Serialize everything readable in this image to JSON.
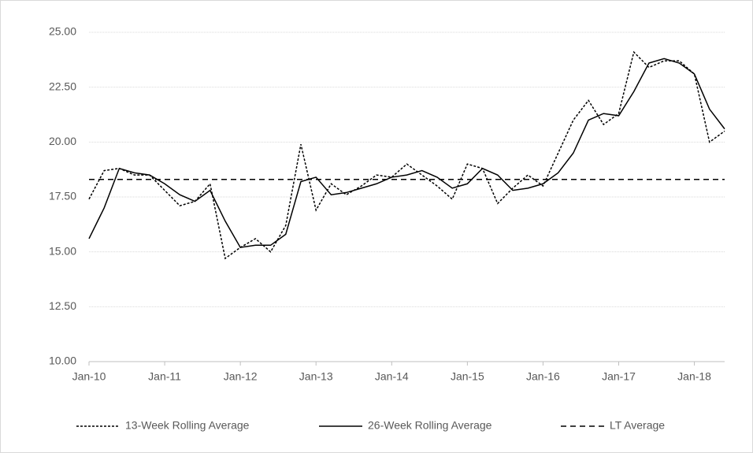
{
  "chart_data": {
    "type": "line",
    "x": [
      2010.0,
      2010.2,
      2010.4,
      2010.6,
      2010.8,
      2011.0,
      2011.2,
      2011.4,
      2011.6,
      2011.8,
      2012.0,
      2012.2,
      2012.4,
      2012.6,
      2012.8,
      2013.0,
      2013.2,
      2013.4,
      2013.6,
      2013.8,
      2014.0,
      2014.2,
      2014.4,
      2014.6,
      2014.8,
      2015.0,
      2015.2,
      2015.4,
      2015.6,
      2015.8,
      2016.0,
      2016.2,
      2016.4,
      2016.6,
      2016.8,
      2017.0,
      2017.2,
      2017.4,
      2017.6,
      2017.8,
      2018.0,
      2018.2,
      2018.4
    ],
    "series": [
      {
        "name": "13-Week Rolling Average",
        "color": "#000000",
        "style": "dotted",
        "values": [
          17.4,
          18.7,
          18.8,
          18.5,
          18.5,
          17.8,
          17.1,
          17.3,
          18.1,
          14.7,
          15.2,
          15.6,
          15.0,
          16.2,
          19.9,
          16.9,
          18.1,
          17.6,
          18.0,
          18.5,
          18.4,
          19.0,
          18.5,
          18.0,
          17.4,
          19.0,
          18.8,
          17.2,
          17.9,
          18.5,
          18.0,
          19.5,
          21.0,
          21.9,
          20.8,
          21.3,
          24.1,
          23.4,
          23.7,
          23.7,
          23.1,
          20.0,
          20.5
        ]
      },
      {
        "name": "26-Week Rolling Average",
        "color": "#000000",
        "style": "solid",
        "values": [
          15.6,
          17.0,
          18.8,
          18.6,
          18.5,
          18.1,
          17.6,
          17.3,
          17.8,
          16.4,
          15.2,
          15.3,
          15.3,
          15.8,
          18.2,
          18.4,
          17.6,
          17.7,
          17.9,
          18.1,
          18.4,
          18.5,
          18.7,
          18.4,
          17.9,
          18.1,
          18.8,
          18.5,
          17.8,
          17.9,
          18.1,
          18.6,
          19.5,
          21.0,
          21.3,
          21.2,
          22.3,
          23.6,
          23.8,
          23.6,
          23.1,
          21.5,
          20.6
        ]
      },
      {
        "name": "LT Average",
        "color": "#000000",
        "style": "dashed",
        "values": [
          18.3,
          18.3,
          18.3,
          18.3,
          18.3,
          18.3,
          18.3,
          18.3,
          18.3,
          18.3,
          18.3,
          18.3,
          18.3,
          18.3,
          18.3,
          18.3,
          18.3,
          18.3,
          18.3,
          18.3,
          18.3,
          18.3,
          18.3,
          18.3,
          18.3,
          18.3,
          18.3,
          18.3,
          18.3,
          18.3,
          18.3,
          18.3,
          18.3,
          18.3,
          18.3,
          18.3,
          18.3,
          18.3,
          18.3,
          18.3,
          18.3,
          18.3,
          18.3
        ]
      }
    ],
    "xlim": [
      2010,
      2018.4
    ],
    "xticks": [
      {
        "value": 2010,
        "label": "Jan-10"
      },
      {
        "value": 2011,
        "label": "Jan-11"
      },
      {
        "value": 2012,
        "label": "Jan-12"
      },
      {
        "value": 2013,
        "label": "Jan-13"
      },
      {
        "value": 2014,
        "label": "Jan-14"
      },
      {
        "value": 2015,
        "label": "Jan-15"
      },
      {
        "value": 2016,
        "label": "Jan-16"
      },
      {
        "value": 2017,
        "label": "Jan-17"
      },
      {
        "value": 2018,
        "label": "Jan-18"
      }
    ],
    "ylim": [
      10,
      25
    ],
    "yticks": [
      {
        "value": 10,
        "label": "10.00"
      },
      {
        "value": 12.5,
        "label": "12.50"
      },
      {
        "value": 15,
        "label": "15.00"
      },
      {
        "value": 17.5,
        "label": "17.50"
      },
      {
        "value": 20,
        "label": "20.00"
      },
      {
        "value": 22.5,
        "label": "22.50"
      },
      {
        "value": 25,
        "label": "25.00"
      }
    ],
    "grid": true,
    "legend": "bottom"
  }
}
